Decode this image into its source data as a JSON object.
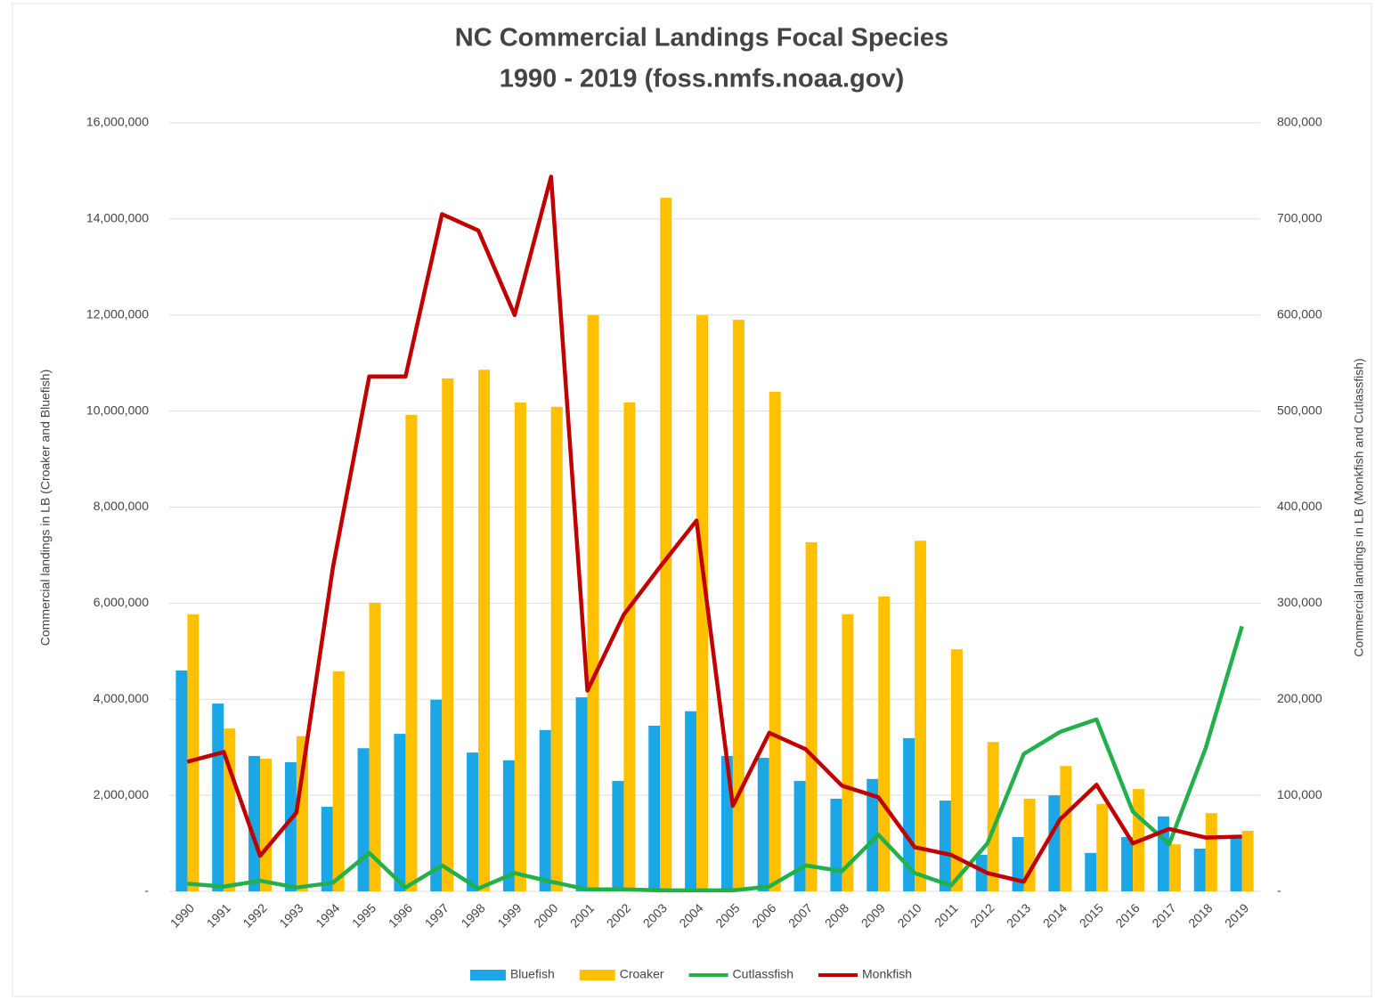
{
  "chart_data": {
    "type": "bar",
    "title": "NC Commercial Landings Focal Species",
    "subtitle": "1990 - 2019 (foss.nmfs.noaa.gov)",
    "y_label": "Commercial landings in LB (Croaker and Bluefish)",
    "y2_label": "Commercial landings in LB (Monkfish and Cutlassfish)",
    "categories": [
      "1990",
      "1991",
      "1992",
      "1993",
      "1994",
      "1995",
      "1996",
      "1997",
      "1998",
      "1999",
      "2000",
      "2001",
      "2002",
      "2003",
      "2004",
      "2005",
      "2006",
      "2007",
      "2008",
      "2009",
      "2010",
      "2011",
      "2012",
      "2013",
      "2014",
      "2015",
      "2016",
      "2017",
      "2018",
      "2019"
    ],
    "ylim": [
      0,
      16000000
    ],
    "yticks": [
      {
        "value": 0,
        "label": "-"
      },
      {
        "value": 2000000,
        "label": "2,000,000"
      },
      {
        "value": 4000000,
        "label": "4,000,000"
      },
      {
        "value": 6000000,
        "label": "6,000,000"
      },
      {
        "value": 8000000,
        "label": "8,000,000"
      },
      {
        "value": 10000000,
        "label": "10,000,000"
      },
      {
        "value": 12000000,
        "label": "12,000,000"
      },
      {
        "value": 14000000,
        "label": "14,000,000"
      },
      {
        "value": 16000000,
        "label": "16,000,000"
      }
    ],
    "y2lim": [
      0,
      800000
    ],
    "y2ticks": [
      {
        "value": 0,
        "label": "-"
      },
      {
        "value": 100000,
        "label": "100,000"
      },
      {
        "value": 200000,
        "label": "200,000"
      },
      {
        "value": 300000,
        "label": "300,000"
      },
      {
        "value": 400000,
        "label": "400,000"
      },
      {
        "value": 500000,
        "label": "500,000"
      },
      {
        "value": 600000,
        "label": "600,000"
      },
      {
        "value": 700000,
        "label": "700,000"
      },
      {
        "value": 800000,
        "label": "800,000"
      }
    ],
    "grid": true,
    "legend": "bottom",
    "series": [
      {
        "name": "Bluefish",
        "color": "#1ba6e6",
        "type": "bar",
        "values": [
          4600000,
          3910000,
          2820000,
          2690000,
          1760000,
          2980000,
          3280000,
          3990000,
          2890000,
          2730000,
          3360000,
          4040000,
          2300000,
          3450000,
          3750000,
          2820000,
          2780000,
          2300000,
          1930000,
          2340000,
          3190000,
          1890000,
          760000,
          1130000,
          2000000,
          800000,
          1130000,
          1560000,
          890000,
          1100000
        ]
      },
      {
        "name": "Croaker",
        "color": "#ffc000",
        "type": "bar",
        "values": [
          5770000,
          3390000,
          2760000,
          3230000,
          4580000,
          6010000,
          9920000,
          10680000,
          10860000,
          10180000,
          10090000,
          12000000,
          10180000,
          14440000,
          12000000,
          11900000,
          10400000,
          7270000,
          5770000,
          6140000,
          7300000,
          5040000,
          3110000,
          1930000,
          2610000,
          1820000,
          2130000,
          980000,
          1630000,
          1260000
        ]
      },
      {
        "name": "Cutlassfish",
        "color": "#22b04b",
        "type": "line",
        "axis": "y2",
        "values": [
          8000,
          5000,
          11000,
          4000,
          9000,
          40000,
          4000,
          27000,
          3000,
          19000,
          10000,
          2000,
          2000,
          1000,
          1000,
          1000,
          5000,
          27000,
          21000,
          59000,
          19000,
          6000,
          50000,
          143000,
          166000,
          179000,
          83000,
          49000,
          149000,
          276000
        ]
      },
      {
        "name": "Monkfish",
        "color": "#c00000",
        "type": "line",
        "axis": "y2",
        "values": [
          135000,
          145000,
          37000,
          82000,
          337000,
          536000,
          536000,
          705000,
          688000,
          600000,
          744000,
          209000,
          288000,
          338000,
          386000,
          89000,
          165000,
          148000,
          110000,
          98000,
          46000,
          38000,
          19000,
          10000,
          75000,
          111000,
          50000,
          65000,
          56000,
          57000
        ]
      }
    ]
  }
}
